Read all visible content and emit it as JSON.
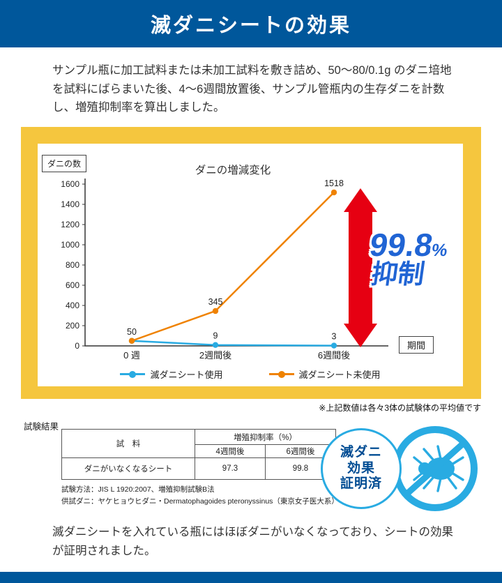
{
  "header": {
    "title": "滅ダニシートの効果"
  },
  "intro": {
    "text": "サンプル瓶に加工試料または未加工試料を敷き詰め、50〜80/0.1g のダニ培地を試料にばらまいた後、4〜6週間放置後、サンプル管瓶内の生存ダニを計数し、増殖抑制率を算出しました。"
  },
  "chart_data": {
    "type": "line",
    "title": "ダニの増減変化",
    "y_axis_label": "ダニの数",
    "x_axis_label": "期間",
    "categories": [
      "0 週",
      "2週間後",
      "6週間後"
    ],
    "series": [
      {
        "name": "滅ダニシート使用",
        "color": "#29abe2",
        "values": [
          50,
          9,
          3
        ]
      },
      {
        "name": "滅ダニシート未使用",
        "color": "#ef8200",
        "values": [
          50,
          345,
          1518
        ]
      }
    ],
    "ylim": [
      0,
      1600
    ],
    "ytick_step": 200,
    "grid": false,
    "legend_position": "bottom",
    "arrow_color": "#e60012",
    "annotation": {
      "value": "99.8",
      "unit": "%",
      "label": "抑制",
      "color": "#2064d4"
    }
  },
  "chart_note": "※上記数値は各々3体の試験体の平均値です",
  "results": {
    "label": "試験結果",
    "table": {
      "sample_header": "試　料",
      "rate_header": "増殖抑制率（%）",
      "week4_header": "4週間後",
      "week6_header": "6週間後",
      "row": {
        "name": "ダニがいなくなるシート",
        "week4": "97.3",
        "week6": "99.8"
      }
    },
    "method": "試験方法：JIS L 1920:2007、増殖抑制試験B法",
    "mite": "供試ダニ：ヤケヒョウヒダニ・Dermatophagoides pteronyssinus（東京女子医大系）"
  },
  "badge": {
    "lines": [
      "滅ダニ",
      "効果",
      "証明済"
    ]
  },
  "conclusion": {
    "text": "滅ダニシートを入れている瓶にはほぼダニがいなくなっており、シートの効果が証明されました。"
  },
  "colors": {
    "navy": "#00579b",
    "yellow": "#f5c63e",
    "light_blue": "#29abe2",
    "red": "#e60012"
  }
}
